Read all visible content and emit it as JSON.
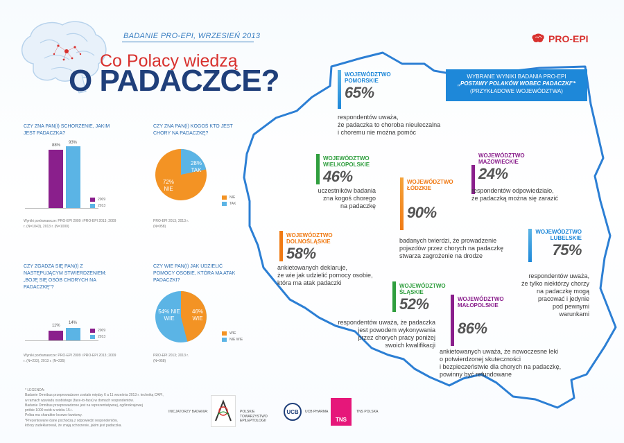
{
  "header": {
    "survey_label": "BADANIE PRO-EPI, WRZESIEŃ 2013",
    "title_line1": "Co Polacy wiedzą",
    "title_line2": "O PADACZCE?",
    "logo_text": "PRO-EPI"
  },
  "left": {
    "q1": {
      "question": "CZY ZNA PAN(I) SCHORZENIE, JAKIM JEST PADACZKA?",
      "values": [
        "88%",
        "93%"
      ],
      "legend": [
        "2009",
        "2013"
      ],
      "source": "Wyniki porównawcze: PRO-EPI 2009 i PRO-EPI 2013; 2009 r. (N=1043), 2013 r. (N=1000)"
    },
    "q2": {
      "question": "CZY ZNA PAN(I) KOGOŚ KTO JEST CHORY NA PADACZKĘ?",
      "yes_label": "28% TAK",
      "no_label": "72% NIE",
      "legend": [
        "NIE",
        "TAK"
      ],
      "source": "PRO-EPI 2013; 2013 r. (N=958)"
    },
    "q3": {
      "question": "CZY ZGADZA SIĘ PAN(I) Z NASTĘPUJĄCYM STWIERDZENIEM: „BOJĘ SIĘ OSÓB CHORYCH NA PADACZKĘ\"?",
      "values": [
        "11%",
        "14%"
      ],
      "legend": [
        "2009",
        "2013"
      ],
      "source": "Wyniki porównawcze: PRO-EPI 2009 i PRO-EPI 2013; 2009 r. (N=233), 2013 r. (N=235)"
    },
    "q4": {
      "question": "CZY WIE PAN(I) JAK UDZIELIĆ POMOCY OSOBIE, KTÓRA MA ATAK PADACZKI?",
      "yes_label": "46% WIE",
      "no_label": "54% NIE WIE",
      "legend": [
        "WIE",
        "NIE WIE"
      ],
      "source": "PRO-EPI 2013; 2013 r. (N=958)"
    }
  },
  "callout": {
    "line1": "WYBRANE WYNIKI BADANIA PRO-EPI",
    "line2": "„POSTAWY POLAKÓW WOBEC PADACZKI\"*",
    "line3": "(PRZYKŁADOWE WOJEWÓDZTWA)"
  },
  "regions": {
    "pomorskie": {
      "name1": "WOJEWÓDZTWO",
      "name2": "POMORSKIE",
      "pct": "65%",
      "desc": [
        "respondentów uważa,",
        "że padaczka to choroba nieuleczalna",
        "i choremu nie można pomóc"
      ]
    },
    "wielkopolskie": {
      "name1": "WOJEWÓDZTWO",
      "name2": "WIELKOPOLSKIE",
      "pct": "46%",
      "desc": [
        "uczestników badania",
        "zna kogoś chorego",
        "na padaczkę"
      ]
    },
    "mazowieckie": {
      "name1": "WOJEWÓDZTWO",
      "name2": "MAZOWIECKIE",
      "pct": "24%",
      "desc": [
        "respondentów odpowiedziało,",
        "że padaczką można się zarazić"
      ]
    },
    "lodzkie": {
      "name1": "WOJEWÓDZTWO",
      "name2": "ŁÓDZKIE",
      "pct": "90%",
      "desc": [
        "badanych twierdzi, że prowadzenie",
        "pojazdów przez chorych na padaczkę",
        "stwarza zagrożenie na drodze"
      ]
    },
    "dolnoslaskie": {
      "name1": "WOJEWÓDZTWO",
      "name2": "DOLNOŚLĄSKIE",
      "pct": "58%",
      "desc": [
        "ankietowanych deklaruje,",
        "że wie jak udzielić pomocy osobie,",
        "która ma atak padaczki"
      ]
    },
    "lubelskie": {
      "name1": "WOJEWÓDZTWO",
      "name2": "LUBELSKIE",
      "pct": "75%",
      "desc": [
        "respondentów uważa,",
        "że tylko niektórzy chorzy",
        "na padaczkę mogą",
        "pracować i jedynie",
        "pod pewnymi",
        "warunkami"
      ]
    },
    "slaskie": {
      "name1": "WOJEWÓDZTWO",
      "name2": "ŚLĄSKIE",
      "pct": "52%",
      "desc": [
        "respondentów uważa, że padaczka",
        "jest powodem wykonywania",
        "przez chorych pracy poniżej",
        "swoich kwalifikacji"
      ]
    },
    "malopolskie": {
      "name1": "WOJEWÓDZTWO",
      "name2": "MAŁOPOLSKIE",
      "pct": "86%",
      "desc": [
        "ankietowanych uważa, że nowoczesne leki",
        "o potwierdzonej skuteczności",
        "i bezpieczeństwie dla chorych na padaczkę,",
        "powinny być refundowane"
      ]
    }
  },
  "footer": {
    "legend_title": "* LEGENDA:",
    "legend_lines": [
      "Badanie Omnibus przeprowadzone zostało między 6 a 11 września 2013 r. techniką CAPI,",
      "w ramach wywiadu osobistego (face-to-face) w domach respondentów.",
      "Badanie Omnibus przeprowadzone jest na reprezentatywnej, ogólnokrajowej",
      "próbie 1000 osób w wieku 15+.",
      "Próba ma charakter losowo-kwotowy.",
      "*Prezentowane dane pochodzą z odpowiedzi respondentów,",
      "którzy zadeklarowali, że znają schorzenie, jakim jest padaczka."
    ],
    "initiators": "INICJATORZY BADANIA:",
    "logos": [
      "POLSKIE TOWARZYSTWO EPILEPTOLOGII",
      "UCB",
      "UCB PHARMA",
      "TNS",
      "TNS POLSKA"
    ]
  },
  "colors": {
    "accent_red": "#d8312e",
    "navy": "#1f3f7a",
    "map_blue": "#1e88d9",
    "bar_purple": "#8a1f8c",
    "bar_blue": "#5bb4e5",
    "pie_orange": "#f39324",
    "green": "#2f9e3e",
    "orange": "#f07a14"
  }
}
